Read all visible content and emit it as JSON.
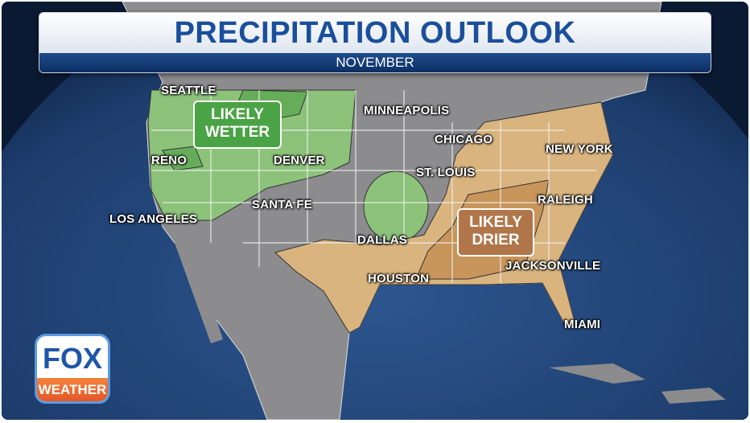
{
  "header": {
    "title": "PRECIPITATION OUTLOOK",
    "subtitle": "NOVEMBER"
  },
  "regions": [
    {
      "label_line1": "LIKELY",
      "label_line2": "WETTER",
      "color": "#4aa345"
    },
    {
      "label_line1": "LIKELY",
      "label_line2": "DRIER",
      "color": "#b0764a"
    }
  ],
  "cities": [
    "SEATTLE",
    "MINNEAPOLIS",
    "CHICAGO",
    "NEW YORK",
    "RENO",
    "DENVER",
    "ST. LOUIS",
    "RALEIGH",
    "SANTA FE",
    "LOS ANGELES",
    "DALLAS",
    "HOUSTON",
    "JACKSONVILLE",
    "MIAMI"
  ],
  "logo": {
    "top": "FOX",
    "bottom": "WEATHER"
  },
  "colors": {
    "land": "#8c8c8e",
    "ocean": "#1f3f6e",
    "wetter": "#8cc27a",
    "drier": "#d9b47e",
    "drier_strong": "#c8955a",
    "title": "#1a4f9c"
  }
}
